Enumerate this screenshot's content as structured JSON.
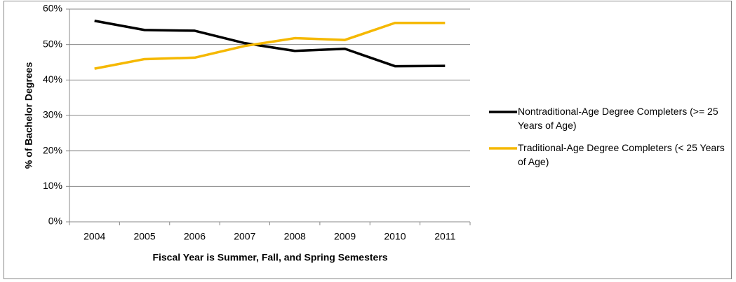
{
  "chart_data": {
    "type": "line",
    "categories": [
      "2004",
      "2005",
      "2006",
      "2007",
      "2008",
      "2009",
      "2010",
      "2011"
    ],
    "series": [
      {
        "name": "Nontraditional-Age Degree Completers (>= 25 Years of Age)",
        "color": "#000000",
        "values": [
          56.7,
          54.1,
          53.9,
          50.4,
          48.2,
          48.8,
          43.9,
          44.0
        ]
      },
      {
        "name": "Traditional-Age Degree Completers (< 25 Years of Age)",
        "color": "#f5b800",
        "values": [
          43.2,
          45.9,
          46.3,
          49.6,
          51.8,
          51.3,
          56.1,
          56.1
        ]
      }
    ],
    "ylabel": "% of Bachelor Degrees",
    "xlabel": "Fiscal Year is Summer, Fall, and Spring Semesters",
    "ylim": [
      0,
      60
    ],
    "yticks": [
      {
        "value": 0,
        "label": "0%"
      },
      {
        "value": 10,
        "label": "10%"
      },
      {
        "value": 20,
        "label": "20%"
      },
      {
        "value": 30,
        "label": "30%"
      },
      {
        "value": 40,
        "label": "40%"
      },
      {
        "value": 50,
        "label": "50%"
      },
      {
        "value": 60,
        "label": "60%"
      }
    ],
    "grid": true,
    "legend": "right"
  }
}
